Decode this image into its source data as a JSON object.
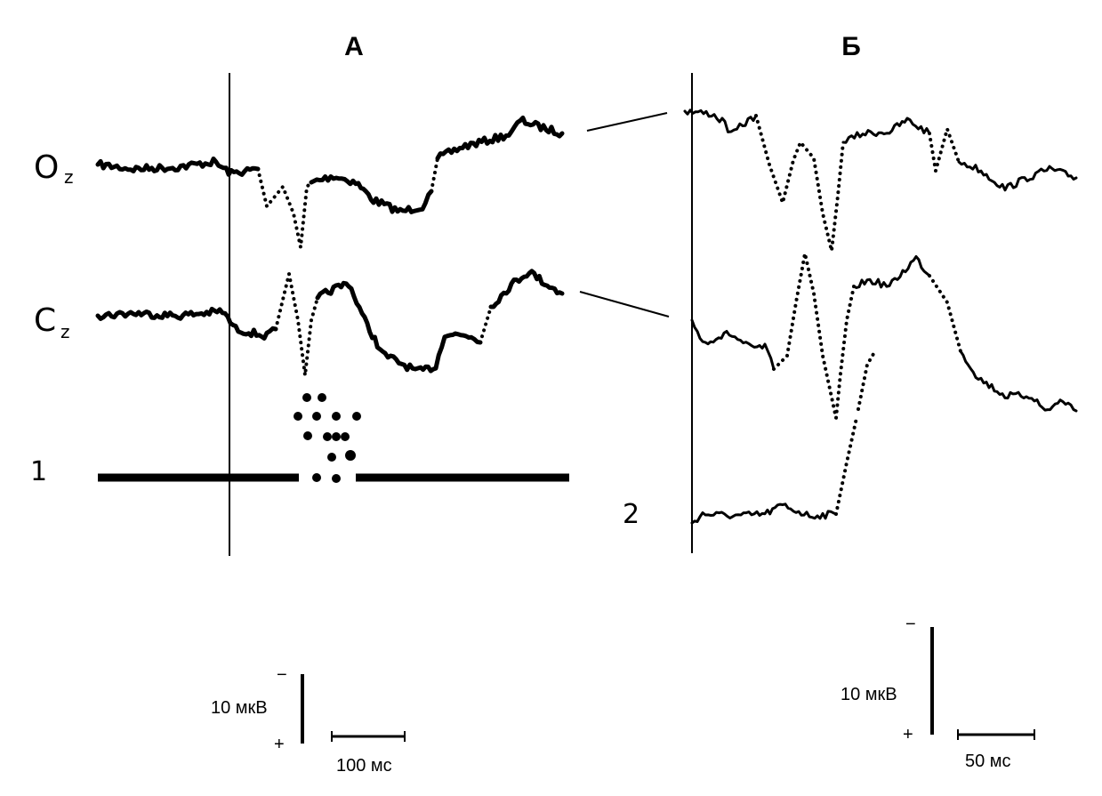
{
  "panels": {
    "a": {
      "label": "А"
    },
    "b": {
      "label": "Б"
    }
  },
  "channels": {
    "oz": {
      "letter": "O",
      "sub": "z"
    },
    "cz": {
      "letter": "C",
      "sub": "z"
    }
  },
  "markers": {
    "one": "1",
    "two": "2"
  },
  "scale_a": {
    "minus": "−",
    "amp": "10 мкВ",
    "plus": "+",
    "time": "100 мс"
  },
  "scale_b": {
    "minus": "−",
    "amp": "10 мкВ",
    "plus": "+",
    "time": "50 мс"
  }
}
